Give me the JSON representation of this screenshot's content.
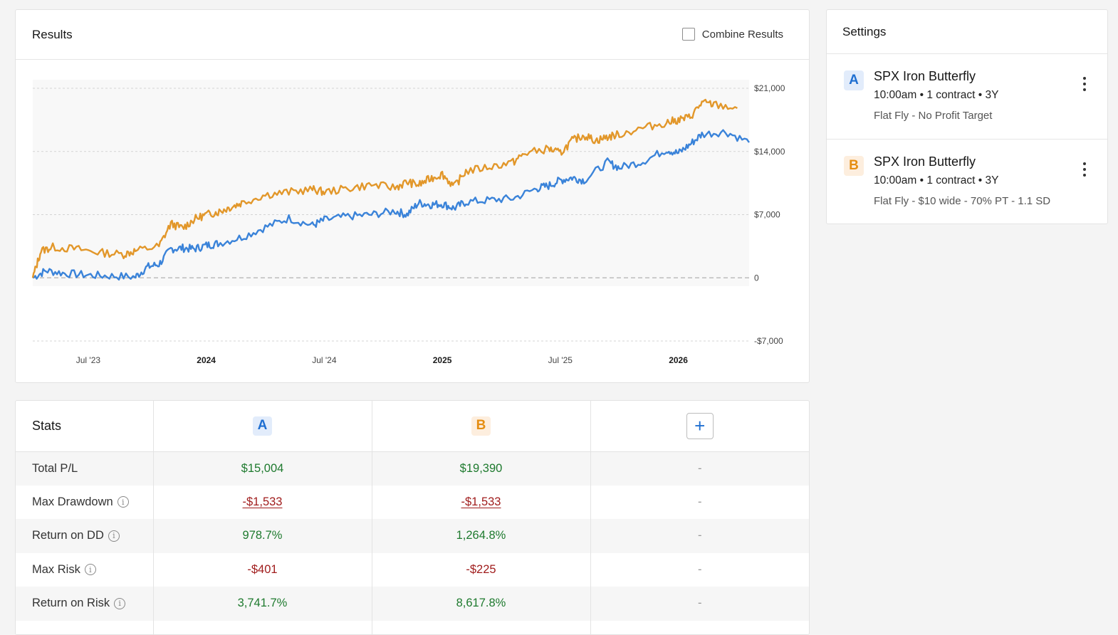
{
  "results": {
    "title": "Results",
    "combine_label": "Combine Results"
  },
  "chart_data": {
    "type": "line",
    "title": "",
    "x_ticks": [
      {
        "label": "Jul '23",
        "value": 2023.5,
        "bold": false
      },
      {
        "label": "2024",
        "value": 2024.0,
        "bold": true
      },
      {
        "label": "Jul '24",
        "value": 2024.5,
        "bold": false
      },
      {
        "label": "2025",
        "value": 2025.0,
        "bold": true
      },
      {
        "label": "Jul '25",
        "value": 2025.5,
        "bold": false
      },
      {
        "label": "2026",
        "value": 2026.0,
        "bold": true
      }
    ],
    "xlim": [
      2023.265,
      2026.3
    ],
    "y_ticks": [
      {
        "label": "$21,000",
        "value": 21000
      },
      {
        "label": "$14,000",
        "value": 14000
      },
      {
        "label": "$7,000",
        "value": 7000
      },
      {
        "label": "0",
        "value": 0
      },
      {
        "label": "-$7,000",
        "value": -7000
      }
    ],
    "ylim": [
      -7000,
      21000
    ],
    "series": [
      {
        "name": "A",
        "color": "#3a83d9",
        "x": [
          2023.265,
          2023.32,
          2023.4,
          2023.5,
          2023.6,
          2023.7,
          2023.75,
          2023.8,
          2023.85,
          2023.9,
          2023.95,
          2024.0,
          2024.05,
          2024.15,
          2024.25,
          2024.35,
          2024.45,
          2024.5,
          2024.6,
          2024.7,
          2024.8,
          2024.85,
          2024.9,
          2024.95,
          2025.0,
          2025.05,
          2025.1,
          2025.2,
          2025.3,
          2025.4,
          2025.45,
          2025.5,
          2025.55,
          2025.6,
          2025.7,
          2025.75,
          2025.85,
          2025.95,
          2026.0,
          2026.05,
          2026.1,
          2026.2,
          2026.3
        ],
        "y": [
          0,
          800,
          500,
          300,
          200,
          100,
          1200,
          1500,
          3200,
          3300,
          3200,
          3600,
          3800,
          4500,
          5600,
          6600,
          5800,
          6400,
          6800,
          7000,
          7400,
          7000,
          8300,
          8100,
          8200,
          7700,
          8400,
          8600,
          8800,
          9900,
          10200,
          10800,
          11100,
          10800,
          12800,
          12200,
          12900,
          14200,
          13800,
          14800,
          15900,
          16200,
          15000
        ]
      },
      {
        "name": "B",
        "color": "#e2972a",
        "x": [
          2023.265,
          2023.3,
          2023.35,
          2023.45,
          2023.55,
          2023.65,
          2023.7,
          2023.8,
          2023.85,
          2023.9,
          2023.95,
          2024.0,
          2024.05,
          2024.1,
          2024.15,
          2024.25,
          2024.35,
          2024.45,
          2024.5,
          2024.6,
          2024.7,
          2024.8,
          2024.85,
          2024.9,
          2024.95,
          2025.0,
          2025.05,
          2025.1,
          2025.2,
          2025.3,
          2025.35,
          2025.45,
          2025.5,
          2025.55,
          2025.6,
          2025.65,
          2025.7,
          2025.75,
          2025.85,
          2025.95,
          2026.0,
          2026.05,
          2026.1,
          2026.15,
          2026.25
        ],
        "y": [
          0,
          3000,
          3400,
          3200,
          2800,
          2600,
          3000,
          3500,
          6000,
          5500,
          6500,
          7000,
          7300,
          7800,
          8300,
          9200,
          9500,
          9800,
          9500,
          9900,
          10300,
          10000,
          10600,
          10300,
          11000,
          11500,
          10100,
          11800,
          12300,
          12800,
          13800,
          14300,
          13800,
          15200,
          15800,
          15200,
          15600,
          15900,
          16600,
          17200,
          17500,
          17800,
          19400,
          19200,
          18800
        ]
      }
    ]
  },
  "settings": {
    "title": "Settings",
    "strategies": [
      {
        "badge": "A",
        "name": "SPX Iron Butterfly",
        "meta": "10:00am • 1 contract • 3Y",
        "desc": "Flat Fly - No Profit Target"
      },
      {
        "badge": "B",
        "name": "SPX Iron Butterfly",
        "meta": "10:00am • 1 contract • 3Y",
        "desc": "Flat Fly - $10 wide - 70% PT - 1.1 SD"
      }
    ]
  },
  "stats": {
    "title": "Stats",
    "col_a": "A",
    "col_b": "B",
    "add_label": "+",
    "rows": [
      {
        "label": "Total P/L",
        "a": "$15,004",
        "b": "$19,390",
        "c": "-"
      },
      {
        "label": "Max Drawdown",
        "a": "-$1,533",
        "b": "-$1,533",
        "c": "-"
      },
      {
        "label": "Return on DD",
        "a": "978.7%",
        "b": "1,264.8%",
        "c": "-"
      },
      {
        "label": "Max Risk",
        "a": "-$401",
        "b": "-$225",
        "c": "-"
      },
      {
        "label": "Return on Risk",
        "a": "3,741.7%",
        "b": "8,617.8%",
        "c": "-"
      }
    ],
    "info_glyph": "i"
  }
}
